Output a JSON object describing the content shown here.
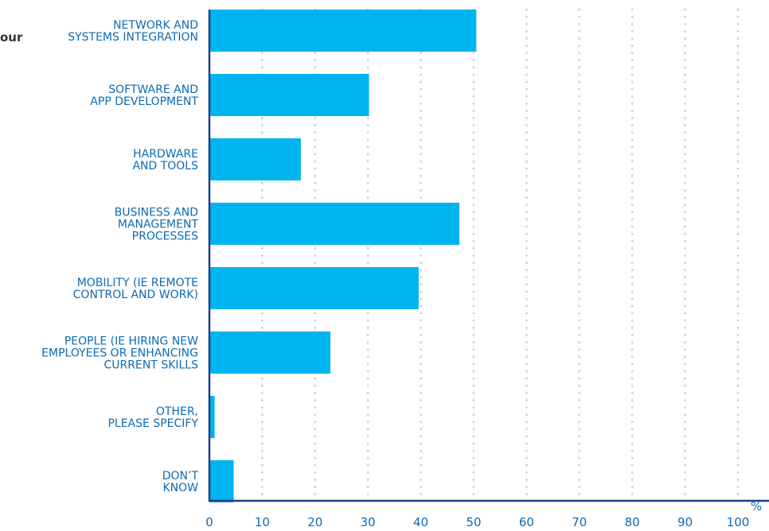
{
  "clipped_text": "our",
  "chart_data": {
    "type": "bar",
    "orientation": "horizontal",
    "categories": [
      [
        "NETWORK AND",
        "SYSTEMS INTEGRATION"
      ],
      [
        "SOFTWARE AND",
        "APP DEVELOPMENT"
      ],
      [
        "HARDWARE",
        "AND TOOLS"
      ],
      [
        "BUSINESS AND",
        "MANAGEMENT",
        "PROCESSES"
      ],
      [
        "MOBILITY (IE REMOTE",
        "CONTROL AND WORK)"
      ],
      [
        "PEOPLE (IE HIRING NEW",
        "EMPLOYEES OR ENHANCING",
        "CURRENT SKILLS"
      ],
      [
        "OTHER,",
        "PLEASE SPECIFY"
      ],
      [
        "DON’T",
        "KNOW"
      ]
    ],
    "values": [
      50.5,
      30.2,
      17.3,
      47.3,
      39.6,
      22.9,
      1.0,
      4.6
    ],
    "xlim": [
      0,
      100
    ],
    "xticks": [
      "0",
      "10",
      "20",
      "30",
      "40",
      "50",
      "60",
      "70",
      "80",
      "90",
      "100"
    ],
    "unit": "%",
    "grid": true,
    "colors": {
      "bar": "#00b4ef",
      "axis": "#1f3f8a",
      "text": "#0e6ab3",
      "grid": "#d6d6d6"
    }
  }
}
